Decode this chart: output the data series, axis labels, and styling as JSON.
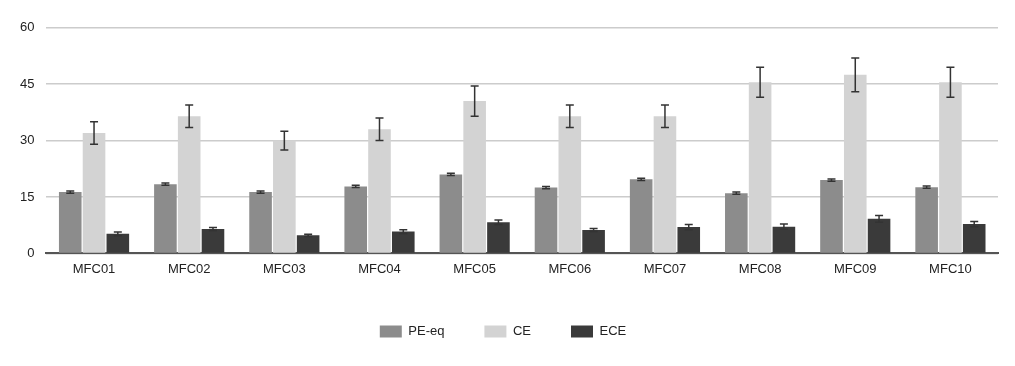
{
  "chart_data": {
    "type": "bar",
    "categories": [
      "MFC01",
      "MFC02",
      "MFC03",
      "MFC04",
      "MFC05",
      "MFC06",
      "MFC07",
      "MFC08",
      "MFC09",
      "MFC10"
    ],
    "series": [
      {
        "name": "PE-eq",
        "color": "#8c8c8c",
        "values": [
          16.3,
          18.4,
          16.3,
          17.8,
          21,
          17.5,
          19.7,
          16,
          19.5,
          17.6
        ],
        "errors": [
          0.3,
          0.3,
          0.3,
          0.3,
          0.3,
          0.3,
          0.3,
          0.3,
          0.3,
          0.3
        ]
      },
      {
        "name": "CE",
        "color": "#d3d3d3",
        "values": [
          32,
          36.5,
          30,
          33,
          40.5,
          36.5,
          36.5,
          45.5,
          47.5,
          45.5
        ],
        "errors": [
          3,
          3,
          2.5,
          3,
          4,
          3,
          3,
          4,
          4.5,
          4
        ]
      },
      {
        "name": "ECE",
        "color": "#3a3a3a",
        "values": [
          5.2,
          6.5,
          4.8,
          5.8,
          8.3,
          6.2,
          7,
          7.1,
          9.2,
          7.8
        ],
        "errors": [
          0.5,
          0.4,
          0.3,
          0.5,
          0.6,
          0.4,
          0.7,
          0.7,
          0.9,
          0.7
        ]
      }
    ],
    "ylim": [
      0,
      60
    ],
    "yticks": [
      0,
      15,
      30,
      45,
      60
    ],
    "grid": "y",
    "legend": "bottom"
  }
}
